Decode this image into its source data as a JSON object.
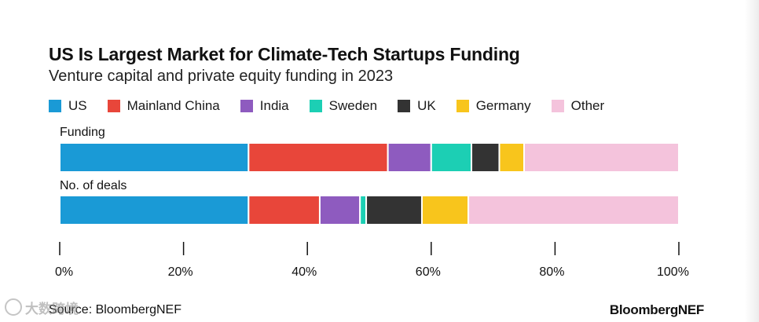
{
  "chart_data": {
    "type": "bar",
    "orientation": "horizontal",
    "stacked": "percent",
    "title": "US Is Largest Market for Climate-Tech Startups Funding",
    "subtitle": "Venture capital and private equity funding in 2023",
    "categories": [
      "Funding",
      "No. of deals"
    ],
    "series": [
      {
        "name": "US",
        "color": "#1a9ad6",
        "values": [
          30.5,
          30.5
        ]
      },
      {
        "name": "Mainland China",
        "color": "#e8463a",
        "values": [
          22.5,
          11.5
        ]
      },
      {
        "name": "India",
        "color": "#8e5bbf",
        "values": [
          7,
          6.5
        ]
      },
      {
        "name": "Sweden",
        "color": "#1ccfb4",
        "values": [
          6.5,
          1
        ]
      },
      {
        "name": "UK",
        "color": "#333333",
        "values": [
          4.5,
          9
        ]
      },
      {
        "name": "Germany",
        "color": "#f8c51c",
        "values": [
          4,
          7.5
        ]
      },
      {
        "name": "Other",
        "color": "#f4c3dc",
        "values": [
          25,
          34
        ]
      }
    ],
    "xlim": [
      0,
      100
    ],
    "x_ticks": [
      "0%",
      "20%",
      "40%",
      "60%",
      "80%",
      "100%"
    ],
    "grid": false,
    "legend_position": "top"
  },
  "footer": {
    "source": "Source: BloombergNEF",
    "brand": "BloombergNEF"
  },
  "watermark": {
    "text": "大数跨境"
  }
}
